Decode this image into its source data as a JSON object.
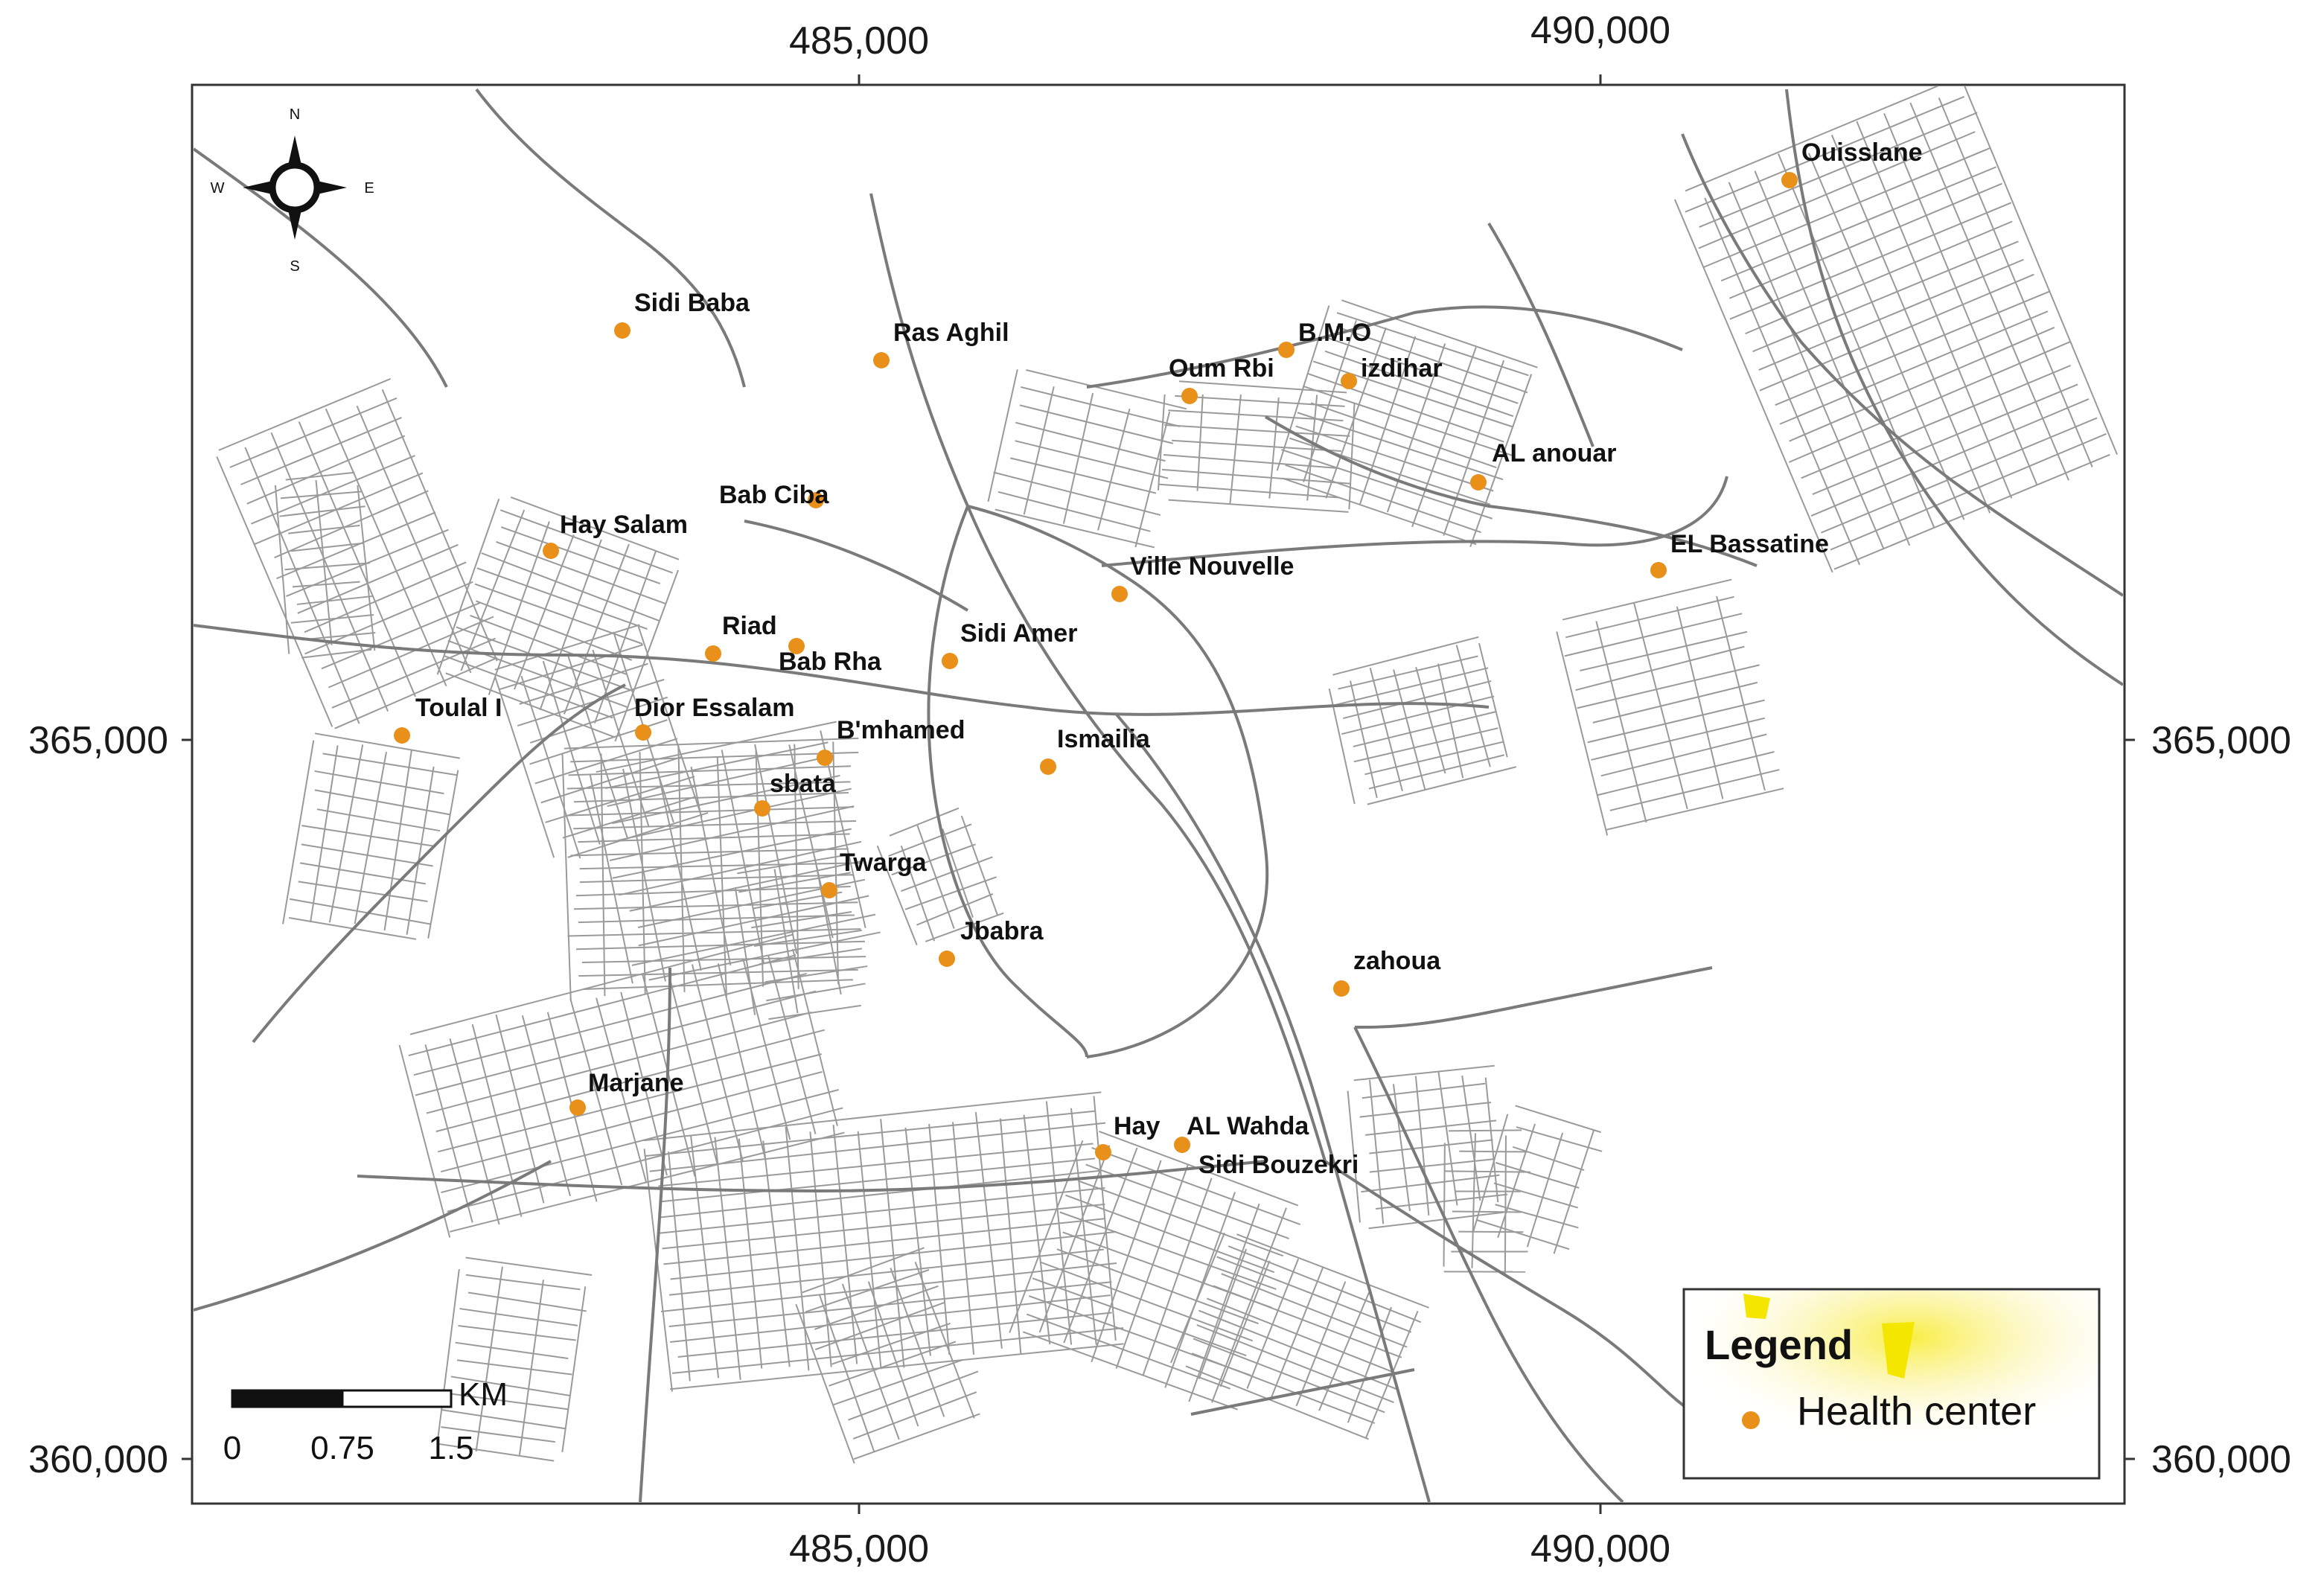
{
  "map": {
    "x_ticks": [
      "485,000",
      "490,000"
    ],
    "y_ticks": [
      "365,000",
      "360,000"
    ],
    "compass": {
      "n": "N",
      "s": "S",
      "e": "E",
      "w": "W"
    },
    "scale_bar": {
      "unit": "KM",
      "labels": [
        "0",
        "0.75",
        "1.5"
      ]
    },
    "legend": {
      "title": "Legend",
      "item_label": "Health center",
      "marker_color": "#E8901A"
    },
    "colors": {
      "road": "#8a8a8a",
      "frame": "#333333",
      "highlight": "#F5E600"
    },
    "health_centers": [
      "Ouisslane",
      "Sidi Baba",
      "Ras Aghil",
      "B.M.O",
      "Oum Rbi",
      "izdihar",
      "AL anouar",
      "Bab Ciba",
      "Hay Salam",
      "EL Bassatine",
      "Ville Nouvelle",
      "Riad",
      "Bab Rha",
      "Sidi Amer",
      "Toulal I",
      "Dior Essalam",
      "B'mhamed",
      "Ismailia",
      "sbata",
      "Twarga",
      "Jbabra",
      "zahoua",
      "Marjane",
      "Hay",
      "AL Wahda",
      "Sidi Bouzekri"
    ]
  }
}
